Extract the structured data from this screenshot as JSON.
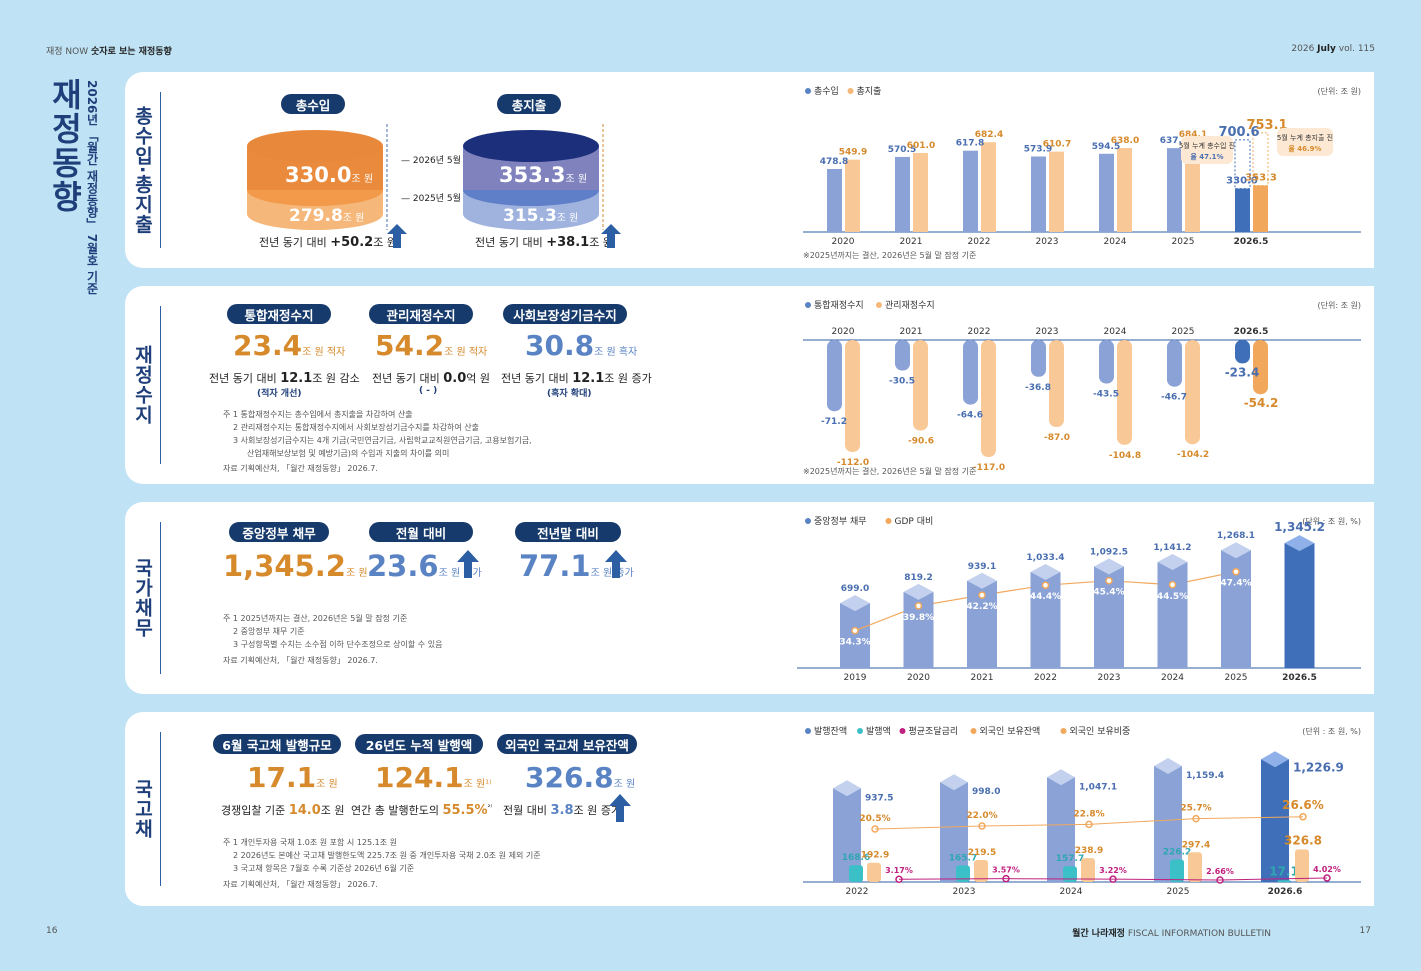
{
  "header": {
    "section_left": "재정 NOW",
    "section_title": "숫자로 보는 재정동향",
    "issue_year": "2026",
    "issue_month": "July",
    "issue_vol": "vol. 115"
  },
  "side_title": {
    "main": "재정동향",
    "sub": "2026년 「월간 재정동향」 7월호 기준"
  },
  "footer": {
    "page_left": "16",
    "page_right": "17",
    "bulletin_kr": "월간 나라재정",
    "bulletin_en": "FISCAL INFORMATION BULLETIN"
  },
  "colors": {
    "navy": "#163a6b",
    "orange": "#d68a2c",
    "blue": "#5a83c4",
    "light_blue_bg": "#bfe3f5"
  },
  "panel1": {
    "tab": "총수입·총지출",
    "revenue_label": "총수입",
    "expenditure_label": "총지출",
    "revenue_2026": "330.0",
    "revenue_2025": "279.8",
    "expenditure_2026": "353.3",
    "expenditure_2025": "315.3",
    "unit": "조 원",
    "label_2026": "2026년 5월",
    "label_2025": "2025년 5월",
    "revenue_change_prefix": "전년 동기 대비",
    "revenue_change": "+50.2",
    "expenditure_change": "+38.1",
    "change_unit": "조 원"
  },
  "panel2": {
    "tab": "재정수지",
    "items": [
      {
        "pill": "통합재정수지",
        "value": "23.4",
        "unit": "조 원 적자",
        "change": "전년 동기 대비",
        "change_value": "12.1",
        "change_unit": "조 원 감소",
        "sub": "(적자 개선)"
      },
      {
        "pill": "관리재정수지",
        "value": "54.2",
        "unit": "조 원 적자",
        "change": "전년 동기 대비",
        "change_value": "0.0",
        "change_unit": "억 원",
        "sub": "( - )"
      },
      {
        "pill": "사회보장성기금수지",
        "value": "30.8",
        "unit": "조 원 흑자",
        "change": "전년 동기 대비",
        "change_value": "12.1",
        "change_unit": "조 원 증가",
        "sub": "(흑자 확대)"
      }
    ],
    "notes": [
      "주 1   통합재정수지는 총수입에서 총지출을 차감하여 산출",
      "2   관리재정수지는 통합재정수지에서 사회보장성기금수지를 차감하여 산출",
      "3   사회보장성기금수지는 4개 기금(국민연금기금, 사립학교교직원연금기금, 고용보험기금,",
      "산업재해보상보험 및 예방기금)의 수입과 지출의 차이를 의미",
      "자료   기획예산처, 「월간 재정동향」 2026.7."
    ]
  },
  "panel3": {
    "tab": "국가채무",
    "items": [
      {
        "pill": "중앙정부 채무",
        "value": "1,345.2",
        "unit": "조 원"
      },
      {
        "pill": "전월 대비",
        "value": "23.6",
        "unit": "조 원 증가"
      },
      {
        "pill": "전년말 대비",
        "value": "77.1",
        "unit": "조 원 증가"
      }
    ],
    "notes": [
      "주 1   2025년까지는 결산, 2026년은 5월 말 잠정 기준",
      "2   중앙정부 채무 기준",
      "3   구성항목별 수치는 소수점 이하 단수조정으로 상이할 수 있음",
      "자료   기획예산처, 「월간 재정동향」 2026.7."
    ]
  },
  "panel4": {
    "tab": "국고채",
    "items": [
      {
        "pill": "6월 국고채 발행규모",
        "value": "17.1",
        "unit": "조 원",
        "sub_prefix": "경쟁입찰 기준",
        "sub_value": "14.0",
        "sub_unit": "조 원"
      },
      {
        "pill": "26년도 누적 발행액",
        "value": "124.1",
        "unit": "조 원¹⁾",
        "sub_prefix": "연간 총 발행한도의",
        "sub_value": "55.5%",
        "sub_unit": "²⁾"
      },
      {
        "pill": "외국인 국고채 보유잔액",
        "value": "326.8",
        "unit": "조 원",
        "sub_prefix": "전월 대비",
        "sub_value": "3.8",
        "sub_unit": "조 원 증가"
      }
    ],
    "notes": [
      "주 1   개인투자용 국채 1.0조 원 포함 시 125.1조 원",
      "2   2026년도 본예산 국고채 발행한도액 225.7조 원 중 개인투자용 국채 2.0조 원 제외 기준",
      "3   국고채 항목은 7월호 수록 기준상 2026년 6월 기준",
      "자료   기획예산처, 「월간 재정동향」 2026.7."
    ]
  },
  "chart_data": [
    {
      "type": "bar",
      "legend": [
        "총수입",
        "총지출"
      ],
      "unit_label": "(단위: 조 원)",
      "categories": [
        "2020",
        "2021",
        "2022",
        "2023",
        "2024",
        "2025",
        "2026.5"
      ],
      "series": [
        {
          "name": "총수입",
          "values": [
            478.8,
            570.5,
            617.8,
            573.9,
            594.5,
            637.4,
            330.0
          ]
        },
        {
          "name": "총지출",
          "values": [
            549.9,
            601.0,
            682.4,
            610.7,
            638.0,
            684.1,
            353.3
          ]
        }
      ],
      "forecast_totals": {
        "revenue": 700.6,
        "expenditure": 753.1
      },
      "callouts": [
        "5월 누계 총수입 진도율 47.1%",
        "5월 누계 총지출 진도율 46.9%"
      ],
      "footnote": "※2025년까지는 결산, 2026년은 5월 말 잠정 기준"
    },
    {
      "type": "bar",
      "legend": [
        "통합재정수지",
        "관리재정수지"
      ],
      "unit_label": "(단위: 조 원)",
      "categories": [
        "2020",
        "2021",
        "2022",
        "2023",
        "2024",
        "2025",
        "2026.5"
      ],
      "series": [
        {
          "name": "통합재정수지",
          "values": [
            -71.2,
            -30.5,
            -64.6,
            -36.8,
            -43.5,
            -46.7,
            -23.4
          ]
        },
        {
          "name": "관리재정수지",
          "values": [
            -112.0,
            -90.6,
            -117.0,
            -87.0,
            -104.8,
            -104.2,
            -54.2
          ]
        }
      ],
      "footnote": "※2025년까지는 결산, 2026년은 5월 말 잠정 기준"
    },
    {
      "type": "bar",
      "legend": [
        "중앙정부 채무",
        "GDP 대비"
      ],
      "unit_label": "(단위 : 조 원, %)",
      "categories": [
        "2019",
        "2020",
        "2021",
        "2022",
        "2023",
        "2024",
        "2025",
        "2026.5"
      ],
      "series": [
        {
          "name": "중앙정부 채무",
          "values": [
            699.0,
            819.2,
            939.1,
            1033.4,
            1092.5,
            1141.2,
            1268.1,
            1345.2
          ]
        },
        {
          "name": "GDP 대비",
          "values": [
            34.3,
            39.8,
            42.2,
            44.4,
            45.4,
            44.5,
            47.4,
            null
          ]
        }
      ]
    },
    {
      "type": "bar",
      "legend": [
        "발행잔액",
        "발행액",
        "평균조달금리",
        "외국인 보유잔액",
        "외국인 보유비중"
      ],
      "unit_label": "(단위 : 조 원, %)",
      "categories": [
        "2022",
        "2023",
        "2024",
        "2025",
        "2026.6"
      ],
      "series": [
        {
          "name": "발행잔액",
          "values": [
            937.5,
            998.0,
            1047.1,
            1159.4,
            1226.9
          ]
        },
        {
          "name": "발행액",
          "values": [
            168.6,
            165.7,
            157.7,
            226.2,
            17.1
          ]
        },
        {
          "name": "평균조달금리",
          "values": [
            3.17,
            3.57,
            3.22,
            2.66,
            4.02
          ]
        },
        {
          "name": "외국인 보유잔액",
          "values": [
            192.9,
            219.5,
            238.9,
            297.4,
            326.8
          ]
        },
        {
          "name": "외국인 보유비중",
          "values": [
            20.5,
            22.0,
            22.8,
            25.7,
            26.6
          ]
        }
      ]
    }
  ]
}
